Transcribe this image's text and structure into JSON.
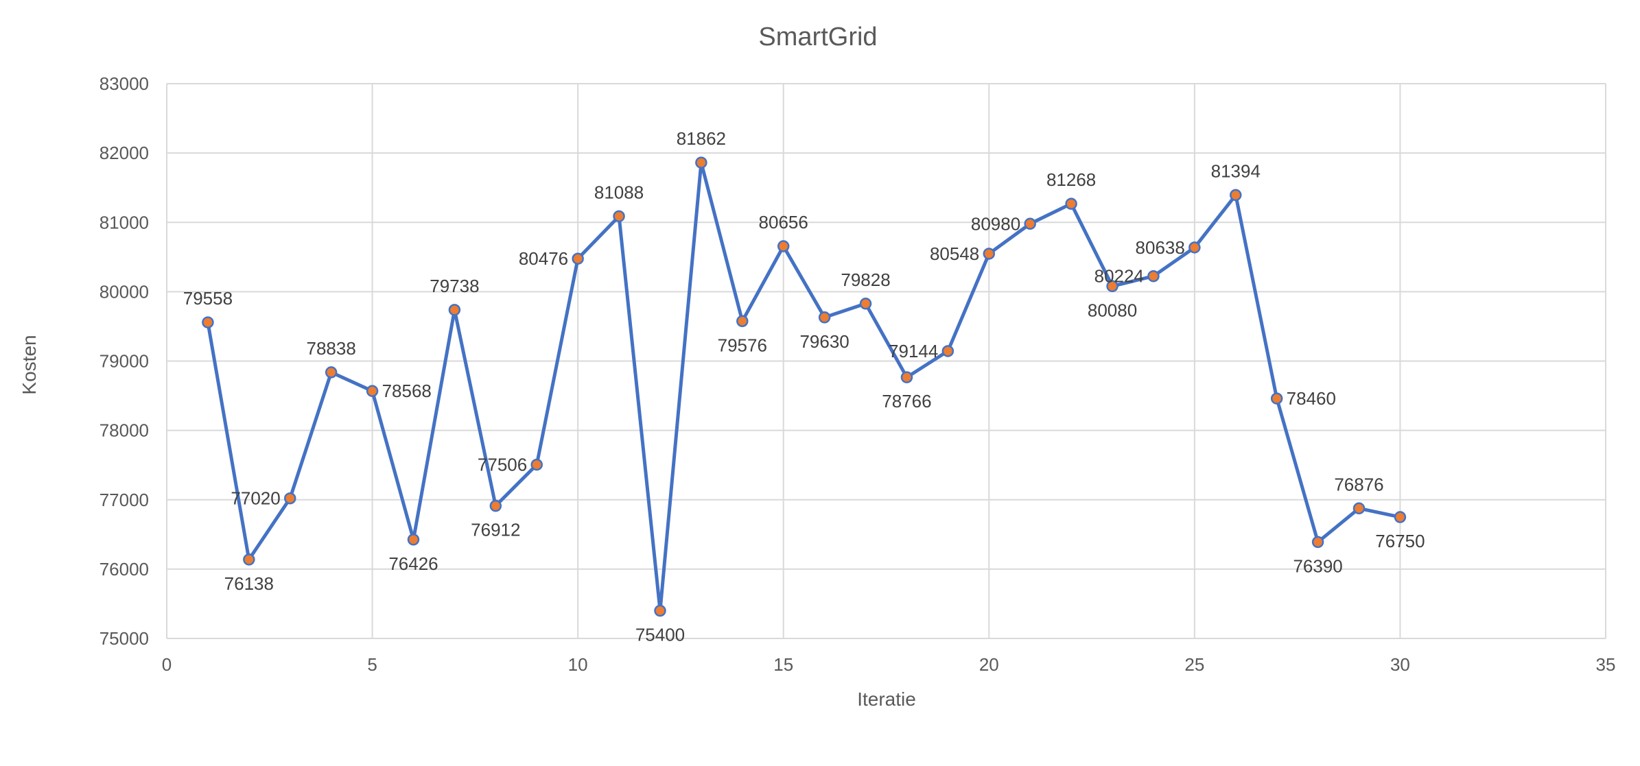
{
  "chart_data": {
    "type": "scatter",
    "title": "SmartGrid",
    "xlabel": "Iteratie",
    "ylabel": "Kosten",
    "xlim": [
      0,
      35
    ],
    "ylim": [
      75000,
      83000
    ],
    "x_ticks": [
      0,
      5,
      10,
      15,
      20,
      25,
      30,
      35
    ],
    "y_ticks": [
      75000,
      76000,
      77000,
      78000,
      79000,
      80000,
      81000,
      82000,
      83000
    ],
    "grid": true,
    "markers": true,
    "data_labels": true,
    "colors": {
      "line": "#4472c4",
      "marker": "#ed7d31"
    },
    "series": [
      {
        "x": [
          1,
          2,
          3,
          4,
          5,
          6,
          7,
          8,
          9,
          10,
          11,
          12,
          13,
          14,
          15,
          16,
          17,
          18,
          19,
          20,
          21,
          22,
          23,
          24,
          25,
          26,
          27,
          28,
          29,
          30
        ],
        "values": [
          79558,
          76138,
          77020,
          78838,
          78568,
          76426,
          79738,
          76912,
          77506,
          80476,
          81088,
          75400,
          81862,
          79576,
          80656,
          79630,
          79828,
          78766,
          79144,
          80548,
          80980,
          81268,
          80080,
          80224,
          80638,
          81394,
          78460,
          76390,
          76876,
          76750
        ]
      }
    ]
  }
}
